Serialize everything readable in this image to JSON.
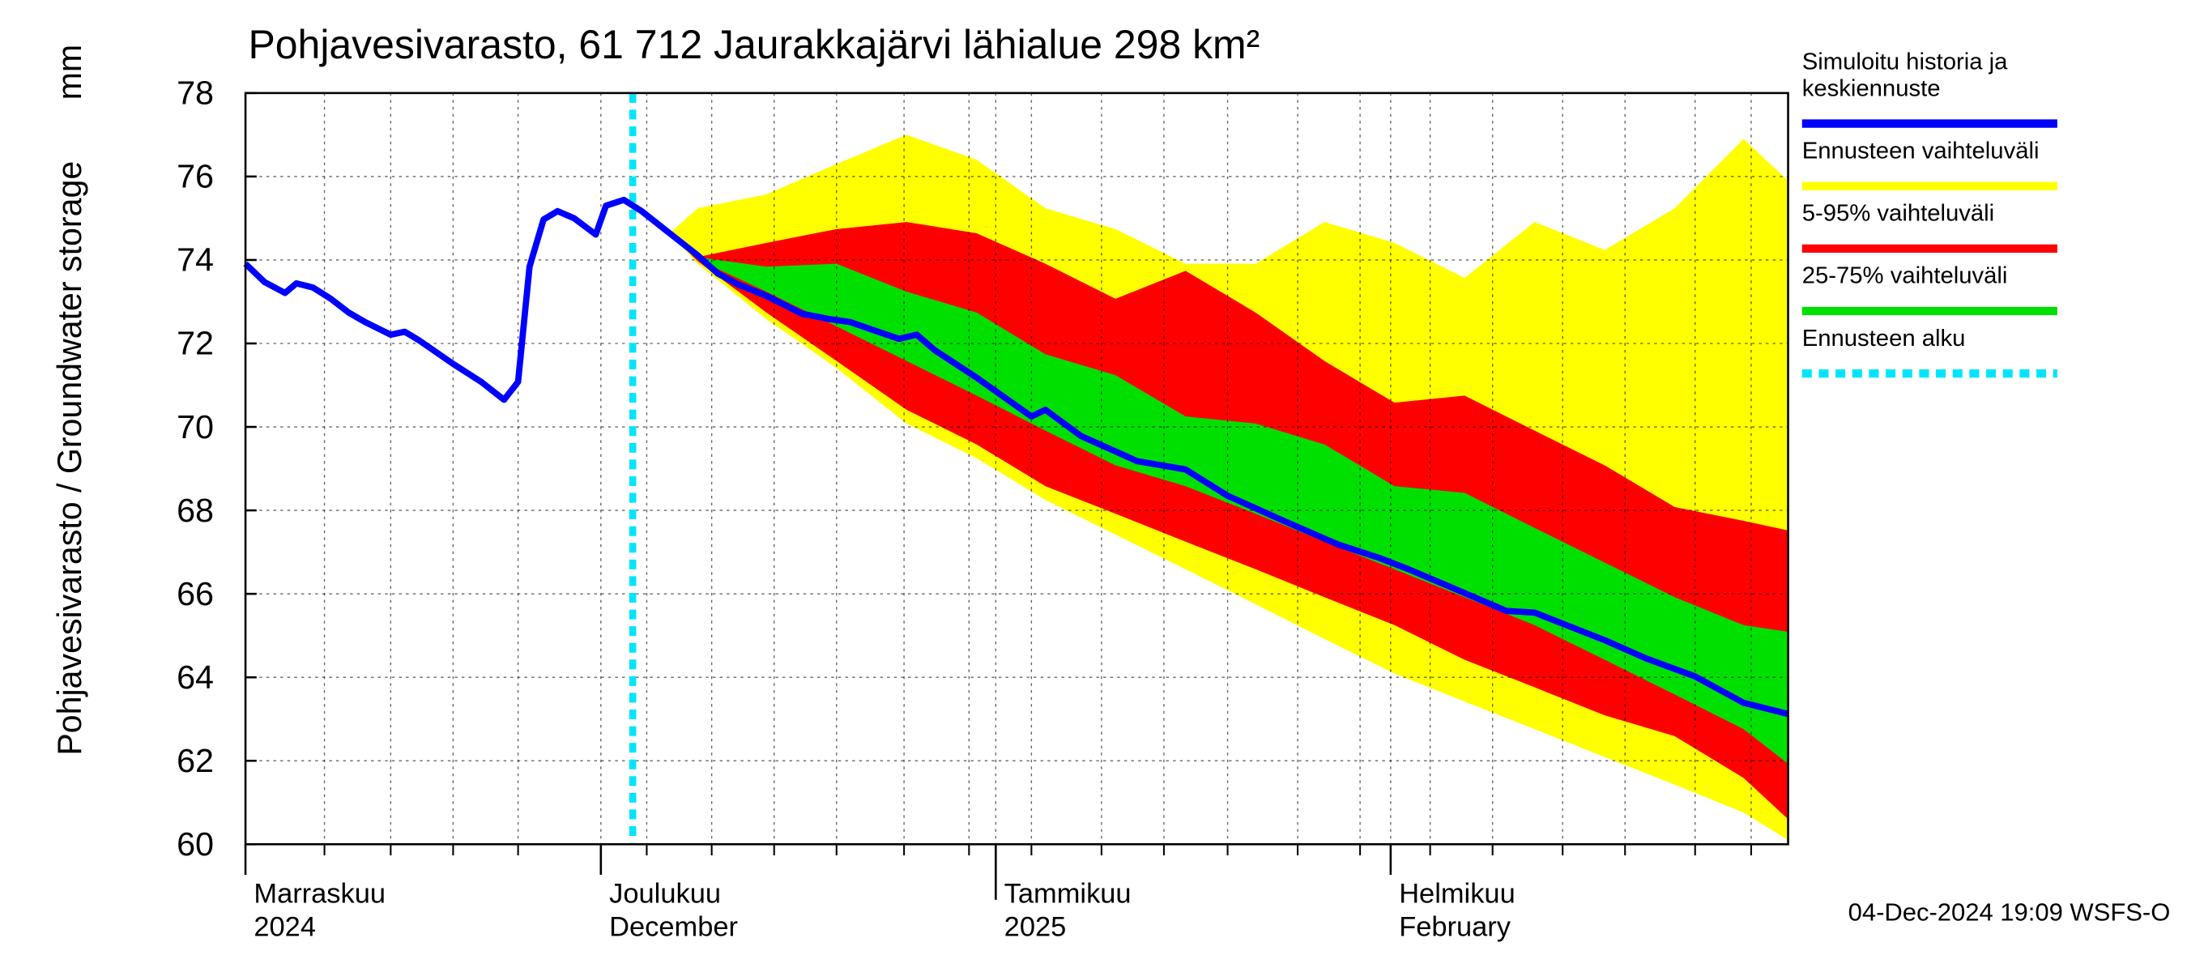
{
  "chart_data": {
    "type": "line",
    "title": "Pohjavesivarasto, 61 712 Jaurakkajärvi lähialue 298 km²",
    "ylabel": "Pohjavesivarasto / Groundwater storage",
    "yunit": "mm",
    "timestamp": "04-Dec-2024 19:09 WSFS-O",
    "xlim": [
      2.1,
      123.2
    ],
    "ylim": [
      60,
      78
    ],
    "yticks": [
      60,
      62,
      64,
      66,
      68,
      70,
      72,
      74,
      76,
      78
    ],
    "xticks": [
      {
        "value": 0,
        "label": "Marraskuu",
        "sublabel": "2024"
      },
      {
        "value": 30,
        "label": "Joulukuu",
        "sublabel": "December"
      },
      {
        "value": 61,
        "label": "Tammikuu",
        "sublabel": "2025"
      },
      {
        "value": 92,
        "label": "Helmikuu",
        "sublabel": "February"
      }
    ],
    "xminorticks": [
      8.3,
      13.5,
      18.4,
      23.5,
      33.6,
      38.7,
      43.6,
      48.5,
      53.8,
      58.9,
      63.8,
      69.3,
      74.2,
      79.2,
      84.7,
      89.6,
      95.1,
      100.0,
      105.5,
      110.4,
      115.9,
      120.3
    ],
    "grid": true,
    "series": [
      {
        "name": "Simuloitu historia ja keskiennuste",
        "color": "#0000ff",
        "x": [
          2.1,
          3.6,
          5.2,
          6.1,
          7.4,
          8.8,
          10.2,
          11.5,
          13.5,
          14.6,
          15.7,
          18.4,
          20.6,
          22.4,
          23.5,
          24.4,
          25.5,
          26.6,
          27.9,
          29.6,
          30.4,
          31.8,
          33.2,
          35.4,
          37.6,
          39.2,
          40.8,
          43.0,
          45.8,
          48.0,
          49.6,
          51.2,
          53.4,
          54.8,
          56.2,
          59.5,
          63.8,
          64.9,
          67.7,
          72.1,
          75.9,
          79.2,
          83.6,
          87.9,
          91.2,
          93.4,
          97.8,
          101.1,
          103.3,
          108.8,
          112.0,
          115.9,
          119.7,
          123.2
        ],
        "values": [
          73.91,
          73.47,
          73.21,
          73.44,
          73.34,
          73.07,
          72.74,
          72.51,
          72.21,
          72.28,
          72.08,
          71.51,
          71.08,
          70.65,
          71.08,
          73.84,
          74.97,
          75.17,
          75.0,
          74.61,
          75.3,
          75.44,
          75.17,
          74.64,
          74.11,
          73.67,
          73.41,
          73.14,
          72.71,
          72.58,
          72.51,
          72.34,
          72.11,
          72.21,
          71.84,
          71.18,
          70.25,
          70.41,
          69.78,
          69.18,
          68.98,
          68.35,
          67.75,
          67.18,
          66.85,
          66.59,
          66.02,
          65.59,
          65.55,
          64.89,
          64.46,
          64.02,
          63.39,
          63.12
        ]
      }
    ],
    "band_x": [
      35.4,
      37.6,
      43.0,
      48.5,
      54.0,
      59.5,
      64.9,
      70.4,
      75.9,
      81.4,
      86.8,
      92.3,
      97.8,
      103.3,
      108.8,
      114.3,
      119.7,
      123.2
    ],
    "bands": [
      {
        "name": "Ennusteen vaihteluväli",
        "color": "#ffff00",
        "upper": [
          74.64,
          75.24,
          75.57,
          76.3,
          77.0,
          76.4,
          75.24,
          74.74,
          73.91,
          73.91,
          74.91,
          74.41,
          73.57,
          74.91,
          74.24,
          75.24,
          76.9,
          75.9
        ],
        "lower": [
          74.64,
          73.91,
          72.58,
          71.41,
          70.08,
          69.25,
          68.25,
          67.42,
          66.59,
          65.75,
          64.92,
          64.09,
          63.42,
          62.76,
          62.09,
          61.43,
          60.76,
          60.1
        ]
      },
      {
        "name": "5-95% vaihteluväli",
        "color": "#ff0000",
        "upper": [
          74.64,
          74.07,
          74.41,
          74.74,
          74.91,
          74.64,
          73.91,
          73.07,
          73.74,
          72.74,
          71.58,
          70.58,
          70.75,
          69.91,
          69.08,
          68.08,
          67.75,
          67.52
        ],
        "lower": [
          74.64,
          73.97,
          72.74,
          71.58,
          70.41,
          69.58,
          68.58,
          67.92,
          67.25,
          66.59,
          65.92,
          65.25,
          64.42,
          63.76,
          63.09,
          62.59,
          61.59,
          60.6
        ]
      },
      {
        "name": "25-75% vaihteluväli",
        "color": "#00e000",
        "upper": [
          74.64,
          74.07,
          73.84,
          73.91,
          73.24,
          72.74,
          71.74,
          71.24,
          70.25,
          70.08,
          69.58,
          68.58,
          68.42,
          67.58,
          66.75,
          65.92,
          65.25,
          65.09
        ],
        "lower": [
          74.64,
          74.01,
          73.24,
          72.41,
          71.58,
          70.75,
          69.91,
          69.08,
          68.58,
          67.92,
          67.25,
          66.59,
          65.92,
          65.25,
          64.42,
          63.59,
          62.76,
          61.93
        ]
      }
    ],
    "forecast_start": {
      "name": "Ennusteen alku",
      "color": "#00e5ff",
      "x": 32.5
    }
  }
}
